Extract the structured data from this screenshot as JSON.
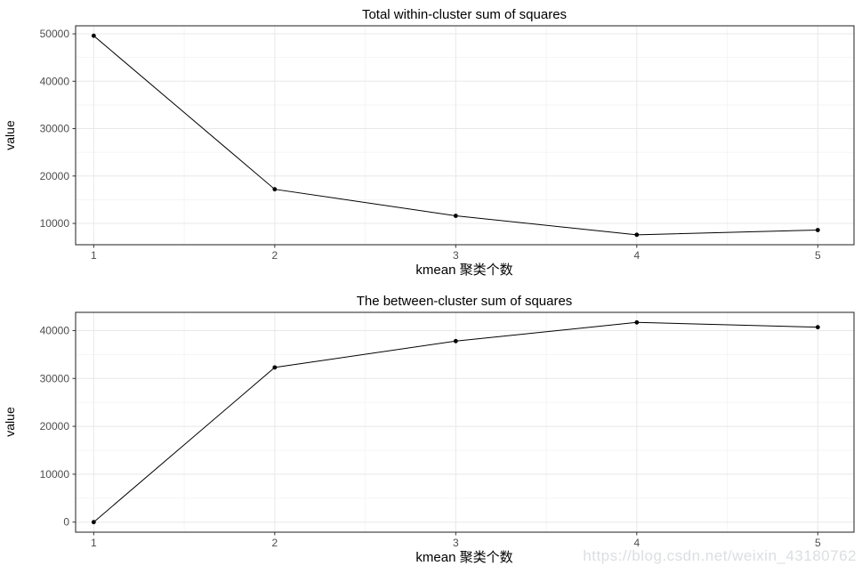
{
  "watermark": {
    "text": "https://blog.csdn.net/weixin_43180762",
    "color": "#dcdee0"
  },
  "style": {
    "background": "#ffffff",
    "panel_border": "#333333",
    "grid_major": "#e8e8e8",
    "grid_minor": "#f3f3f3",
    "tick_color": "#333333",
    "tick_label_color": "#4d4d4d",
    "series_color": "#000000"
  },
  "chart_data": [
    {
      "type": "line",
      "title": "Total within-cluster sum of squares",
      "xlabel": "kmean 聚类个数",
      "ylabel": "value",
      "x": [
        1,
        2,
        3,
        4,
        5
      ],
      "values": [
        49600,
        17200,
        11600,
        7600,
        8600
      ],
      "xticks": [
        1,
        2,
        3,
        4,
        5
      ],
      "yticks": [
        10000,
        20000,
        30000,
        40000,
        50000
      ],
      "xlim": [
        0.9,
        5.2
      ],
      "ylim": [
        5500,
        51700
      ],
      "grid": "major+minor",
      "legend": "none",
      "marker": "point"
    },
    {
      "type": "line",
      "title": "The between-cluster sum of squares",
      "xlabel": "kmean 聚类个数",
      "ylabel": "value",
      "x": [
        1,
        2,
        3,
        4,
        5
      ],
      "values": [
        0,
        32300,
        37800,
        41700,
        40700
      ],
      "xticks": [
        1,
        2,
        3,
        4,
        5
      ],
      "yticks": [
        0,
        10000,
        20000,
        30000,
        40000
      ],
      "xlim": [
        0.9,
        5.2
      ],
      "ylim": [
        -2100,
        43800
      ],
      "grid": "major+minor",
      "legend": "none",
      "marker": "point"
    }
  ]
}
